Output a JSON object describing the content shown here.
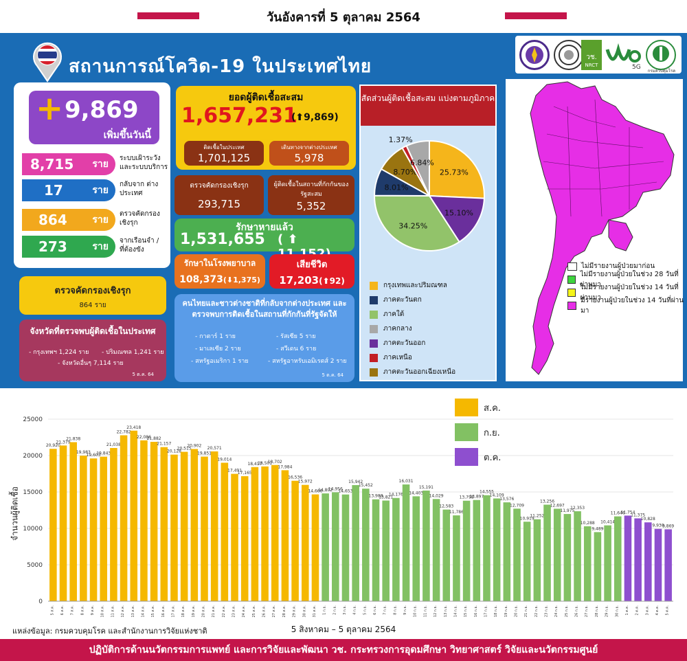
{
  "header": {
    "date": "วันอังคารที่ 5 ตุลาคม 2564"
  },
  "title": "สถานการณ์โควิด-19 ในประเทศไทย",
  "logos": {
    "nrct": "วช.",
    "nrct_sub": "NRCT",
    "five_g": "5G",
    "ddc_caption": "กรมควบคุมโรค"
  },
  "new_cases": {
    "value": "+9,869",
    "plus": "+",
    "number": "9,869",
    "label": "เพิ่มขึ้นวันนี้"
  },
  "breakdown": [
    {
      "value": "8,715",
      "unit": "ราย",
      "desc": "ระบบเฝ้าระวัง และระบบบริการ",
      "color": "#e23fa8"
    },
    {
      "value": "17",
      "unit": "ราย",
      "desc": "กลับจาก ต่างประเทศ",
      "color": "#1f6fc5"
    },
    {
      "value": "864",
      "unit": "ราย",
      "desc": "ตรวจคัดกรอง เชิงรุก",
      "color": "#f2a81d"
    },
    {
      "value": "273",
      "unit": "ราย",
      "desc": "จากเรือนจำ /ที่ต้องขัง",
      "color": "#2fa84f"
    }
  ],
  "cumulative": {
    "label": "ยอดผู้ติดเชื้อสะสม",
    "value": "1,657,231",
    "delta": "(⬆9,869)"
  },
  "domestic": {
    "label": "ติดเชื้อในประเทศ",
    "value": "1,701,125"
  },
  "abroad": {
    "label": "เดินทางจากต่างประเทศ",
    "value": "5,978"
  },
  "active_screen": {
    "label": "ตรวจคัดกรองเชิงรุก",
    "value": "293,715"
  },
  "quarantine": {
    "label": "ผู้ติดเชื้อในสถานที่กักกันของรัฐสะสม",
    "value": "5,352"
  },
  "recovered": {
    "label": "รักษาหายแล้ว",
    "value": "1,531,655",
    "delta": "( ⬆ 11,152)"
  },
  "hospital": {
    "label": "รักษาในโรงพยาบาล",
    "value": "108,373",
    "delta": "(⬇1,375)"
  },
  "deaths": {
    "label": "เสียชีวิต",
    "value": "17,203",
    "delta": "(⬆92)"
  },
  "screen_box": {
    "title": "ตรวจคัดกรองเชิงรุก",
    "value": "864 ราย"
  },
  "province_box": {
    "title": "จังหวัดที่ตรวจพบผู้ติดเชื้อในประเทศ",
    "line1": "- กรุงเทพฯ 1,224 ราย",
    "line2": "- ปริมณฑล 1,241 ราย",
    "line3": "- จังหวัดอื่นๆ 7,114 ราย",
    "date": "5 ต.ค. 64"
  },
  "returnees": {
    "title": "คนไทยและชาวต่างชาติที่กลับจากต่างประเทศ และตรวจพบการติดเชื้อในสถานที่กักกันที่รัฐจัดให้",
    "items": [
      "- กาตาร์ 1 ราย",
      "- รัสเซีย 5 ราย",
      "- มาเลเซีย 2 ราย",
      "- สวีเดน 6 ราย",
      "- สหรัฐอเมริกา 1 ราย",
      "- สหรัฐอาหรับเอมิเรตส์ 2 ราย"
    ],
    "date": "5 ต.ค. 64"
  },
  "pie": {
    "title": "สัดส่วนผู้ติดเชื้อสะสม แบ่งตามภูมิภาค",
    "slices": [
      {
        "name": "กรุงเทพและปริมณฑล",
        "value": 25.73,
        "label": "25.73%",
        "color": "#f5b51b"
      },
      {
        "name": "ภาคตะวันออก",
        "value": 15.1,
        "label": "15.10%",
        "color": "#6a2f9c"
      },
      {
        "name": "ภาคใต้",
        "value": 34.25,
        "label": "34.25%",
        "color": "#92c36a"
      },
      {
        "name": "ภาคตะวันตก",
        "value": 8.01,
        "label": "8.01%",
        "color": "#1f3b6b"
      },
      {
        "name": "ภาคตะวันออกเฉียงเหนือ",
        "value": 8.7,
        "label": "8.70%",
        "color": "#9a7410"
      },
      {
        "name": "ภาคเหนือ",
        "value": 1.37,
        "label": "1.37%",
        "color": "#c21e24"
      },
      {
        "name": "ภาคกลาง",
        "value": 6.84,
        "label": "6.84%",
        "color": "#a8a8a8"
      }
    ],
    "legend": [
      {
        "name": "กรุงเทพและปริมณฑล",
        "color": "#f5b51b"
      },
      {
        "name": "ภาคตะวันตก",
        "color": "#1f3b6b"
      },
      {
        "name": "ภาคใต้",
        "color": "#92c36a"
      },
      {
        "name": "ภาคกลาง",
        "color": "#a8a8a8"
      },
      {
        "name": "ภาคตะวันออก",
        "color": "#6a2f9c"
      },
      {
        "name": "ภาคเหนือ",
        "color": "#c21e24"
      },
      {
        "name": "ภาคตะวันออกเฉียงเหนือ",
        "color": "#9a7410"
      }
    ]
  },
  "map_legend": [
    {
      "label": "ไม่มีรายงานผู้ป่วยมาก่อน",
      "color": "#ffffff"
    },
    {
      "label": "ไม่มีรายงานผู้ป่วยในช่วง 28 วันที่ผ่านมา",
      "color": "#3ed43e"
    },
    {
      "label": "ไม่มีรายงานผู้ป่วยในช่วง 14 วันที่ผ่านมา",
      "color": "#f5f51a"
    },
    {
      "label": "มีรายงานผู้ป่วยในช่วง 14 วันที่ผ่านมา",
      "color": "#e62ee6"
    }
  ],
  "chart_data": {
    "type": "bar",
    "ylabel": "จำนวนผู้ติดเชื้อ",
    "xlabel": "5 สิงหาคม – 5 ตุลาคม 2564",
    "ylim": [
      0,
      25000
    ],
    "yticks": [
      0,
      5000,
      10000,
      15000,
      20000,
      25000
    ],
    "legend": [
      {
        "name": "ส.ค.",
        "color": "#f5b800"
      },
      {
        "name": "ก.ย.",
        "color": "#82c163"
      },
      {
        "name": "ต.ค.",
        "color": "#8e4fcf"
      }
    ],
    "categories": [
      "5 ส.ค.",
      "6 ส.ค.",
      "7 ส.ค.",
      "8 ส.ค.",
      "9 ส.ค.",
      "10 ส.ค.",
      "11 ส.ค.",
      "12 ส.ค.",
      "13 ส.ค.",
      "14 ส.ค.",
      "15 ส.ค.",
      "16 ส.ค.",
      "17 ส.ค.",
      "18 ส.ค.",
      "19 ส.ค.",
      "20 ส.ค.",
      "21 ส.ค.",
      "22 ส.ค.",
      "23 ส.ค.",
      "24 ส.ค.",
      "25 ส.ค.",
      "26 ส.ค.",
      "27 ส.ค.",
      "28 ส.ค.",
      "29 ส.ค.",
      "30 ส.ค.",
      "31 ส.ค.",
      "1 ก.ย.",
      "2 ก.ย.",
      "3 ก.ย.",
      "4 ก.ย.",
      "5 ก.ย.",
      "6 ก.ย.",
      "7 ก.ย.",
      "8 ก.ย.",
      "9 ก.ย.",
      "10 ก.ย.",
      "11 ก.ย.",
      "12 ก.ย.",
      "13 ก.ย.",
      "14 ก.ย.",
      "15 ก.ย.",
      "16 ก.ย.",
      "17 ก.ย.",
      "18 ก.ย.",
      "19 ก.ย.",
      "20 ก.ย.",
      "21 ก.ย.",
      "22 ก.ย.",
      "23 ก.ย.",
      "24 ก.ย.",
      "25 ก.ย.",
      "26 ก.ย.",
      "27 ก.ย.",
      "28 ก.ย.",
      "29 ก.ย.",
      "30 ก.ย.",
      "1 ต.ค.",
      "2 ต.ค.",
      "3 ต.ค.",
      "4 ต.ค.",
      "5 ต.ค."
    ],
    "values": [
      20920,
      21379,
      21838,
      19983,
      19603,
      19843,
      21038,
      22782,
      23418,
      22086,
      21882,
      21157,
      20128,
      20515,
      20902,
      19851,
      20571,
      19014,
      17491,
      17165,
      18417,
      18501,
      18702,
      17984,
      16536,
      15972,
      14666,
      14802,
      14956,
      14653,
      15942,
      15452,
      13988,
      13821,
      14176,
      16031,
      14403,
      15191,
      14029,
      12583,
      11786,
      13798,
      13897,
      14555,
      14109,
      13576,
      12709,
      10919,
      11252,
      13256,
      12697,
      11975,
      12353,
      10288,
      9489,
      10414,
      11646,
      11754,
      11375,
      10828,
      9930,
      9869
    ],
    "labels": [
      "20,920",
      "21,379",
      "21,838",
      "19,983",
      "19,603",
      "19,843",
      "21,038",
      "22,782",
      "23,418",
      "22,086",
      "21,882",
      "21,157",
      "20,128",
      "20,515",
      "20,902",
      "19,851",
      "20,571",
      "19,014",
      "17,491",
      "17,165",
      "18,417",
      "18,501",
      "18,702",
      "17,984",
      "16,536",
      "15,972",
      "14,666",
      "14,802",
      "14,956",
      "14,653",
      "15,942",
      "15,452",
      "13,988",
      "13,821",
      "14,176",
      "16,031",
      "14,403",
      "15,191",
      "14,029",
      "12,583",
      "11,786",
      "13,798",
      "13,897",
      "14,555",
      "14,109",
      "13,576",
      "12,709",
      "10,919",
      "11,252",
      "13,256",
      "12,697",
      "11,975",
      "12,353",
      "10,288",
      "9,489",
      "10,414",
      "11,646",
      "11,754",
      "11,375",
      "10,828",
      "9,930",
      "9,869"
    ]
  },
  "source": "แหล่งข้อมูล: กรมควบคุมโรค และสำนักงานการวิจัยแห่งชาติ",
  "footer": "ปฏิบัติการด้านนวัตกรรมการแพทย์ และการวิจัยและพัฒนา วช. กระทรวงการอุดมศึกษา วิทยาศาสตร์ วิจัยและนวัตกรรมศูนย์"
}
